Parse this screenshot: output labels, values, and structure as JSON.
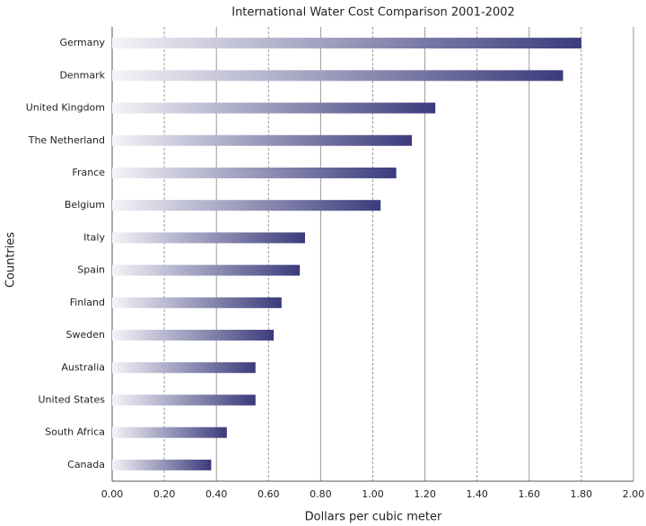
{
  "chart_data": {
    "type": "hbar",
    "title": "International Water Cost Comparison 2001-2002",
    "x_label": "Dollars per cubic meter",
    "y_label": "Countries",
    "categories": [
      "Germany",
      "Denmark",
      "United Kingdom",
      "The Netherland",
      "France",
      "Belgium",
      "Italy",
      "Spain",
      "Finland",
      "Sweden",
      "Australia",
      "United States",
      "South Africa",
      "Canada"
    ],
    "values": [
      1.8,
      1.73,
      1.24,
      1.15,
      1.09,
      1.03,
      0.74,
      0.72,
      0.65,
      0.62,
      0.55,
      0.55,
      0.44,
      0.38
    ],
    "color": "#3b3b7c",
    "xlim": [
      0,
      2
    ],
    "xticks": [
      {
        "value": 0,
        "label": "0.00"
      },
      {
        "value": 0.2,
        "label": "0.20"
      },
      {
        "value": 0.4,
        "label": "0.40"
      },
      {
        "value": 0.6,
        "label": "0.60"
      },
      {
        "value": 0.8,
        "label": "0.80"
      },
      {
        "value": 1.0,
        "label": "1.00"
      },
      {
        "value": 1.2,
        "label": "1.20"
      },
      {
        "value": 1.4,
        "label": "1.40"
      },
      {
        "value": 1.6,
        "label": "1.60"
      },
      {
        "value": 1.8,
        "label": "1.80"
      },
      {
        "value": 2.0,
        "label": "2.00"
      }
    ],
    "grid": true
  }
}
